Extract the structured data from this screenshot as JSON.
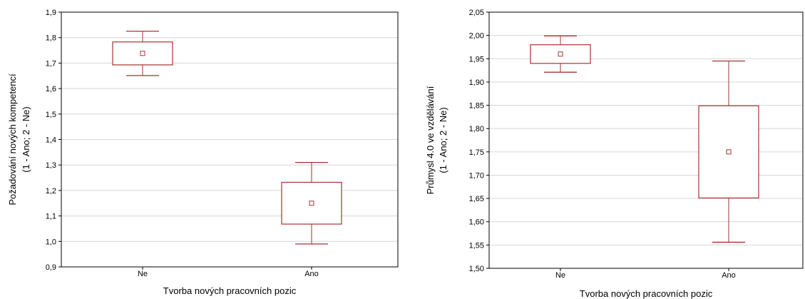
{
  "chart_data": [
    {
      "type": "boxplot",
      "xlabel": "Tvorba nových pracovních pozic",
      "ylabel": [
        "Požadování nových kompetencí",
        "(1 - Ano; 2 - Ne)"
      ],
      "categories": [
        "Ne",
        "Ano"
      ],
      "ylim": [
        0.9,
        1.9
      ],
      "yticks": [
        0.9,
        1.0,
        1.1,
        1.2,
        1.3,
        1.4,
        1.5,
        1.6,
        1.7,
        1.8,
        1.9
      ],
      "ytick_labels": [
        "0,9",
        "1,0",
        "1,1",
        "1,2",
        "1,3",
        "1,4",
        "1,5",
        "1,6",
        "1,7",
        "1,8",
        "1,9"
      ],
      "boxes": [
        {
          "category": "Ne",
          "mean": 1.738,
          "box_low": 1.693,
          "box_high": 1.783,
          "whisker_low": 1.651,
          "whisker_high": 1.825
        },
        {
          "category": "Ano",
          "mean": 1.15,
          "box_low": 1.068,
          "box_high": 1.232,
          "whisker_low": 0.99,
          "whisker_high": 1.31
        }
      ],
      "grid": true,
      "color": "#a83232"
    },
    {
      "type": "boxplot",
      "xlabel": "Tvorba nových pracovních pozic",
      "ylabel": [
        "Průmysl 4.0 ve vzdělávání",
        "(1 - Ano; 2 - Ne)"
      ],
      "categories": [
        "Ne",
        "Ano"
      ],
      "ylim": [
        1.5,
        2.05
      ],
      "yticks": [
        1.5,
        1.55,
        1.6,
        1.65,
        1.7,
        1.75,
        1.8,
        1.85,
        1.9,
        1.95,
        2.0,
        2.05
      ],
      "ytick_labels": [
        "1,50",
        "1,55",
        "1,60",
        "1,65",
        "1,70",
        "1,75",
        "1,80",
        "1,85",
        "1,90",
        "1,95",
        "2,00",
        "2,05"
      ],
      "boxes": [
        {
          "category": "Ne",
          "mean": 1.96,
          "box_low": 1.94,
          "box_high": 1.98,
          "whisker_low": 1.921,
          "whisker_high": 1.999
        },
        {
          "category": "Ano",
          "mean": 1.75,
          "box_low": 1.651,
          "box_high": 1.849,
          "whisker_low": 1.556,
          "whisker_high": 1.945
        }
      ],
      "grid": true,
      "color": "#a83232"
    }
  ]
}
